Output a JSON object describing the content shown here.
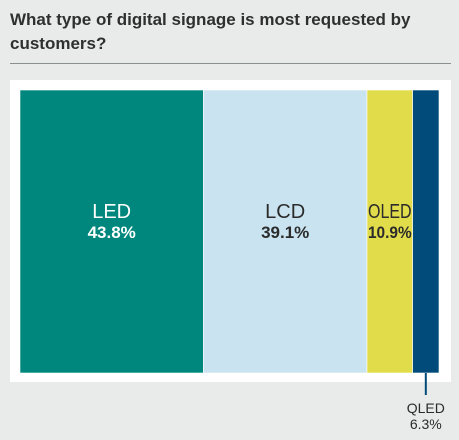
{
  "header": {
    "title": "What type of digital signage is most requested by customers?"
  },
  "chart_data": {
    "type": "bar",
    "layout": "100% stacked single bar",
    "title": "What type of digital signage is most requested by customers?",
    "categories": [
      "LED",
      "LCD",
      "OLED",
      "QLED"
    ],
    "values": [
      43.8,
      39.1,
      10.9,
      6.3
    ],
    "value_labels": [
      "43.8%",
      "39.1%",
      "10.9%",
      "6.3%"
    ],
    "unit": "%",
    "colors": [
      "#00877d",
      "#c9e4f0",
      "#e0dc4a",
      "#004b7a"
    ],
    "label_colors": [
      "#ffffff",
      "#2b2b2b",
      "#2b2b2b",
      "#2b2b2b"
    ],
    "outside_label_categories": [
      "QLED"
    ],
    "grid": false,
    "legend": "none"
  }
}
